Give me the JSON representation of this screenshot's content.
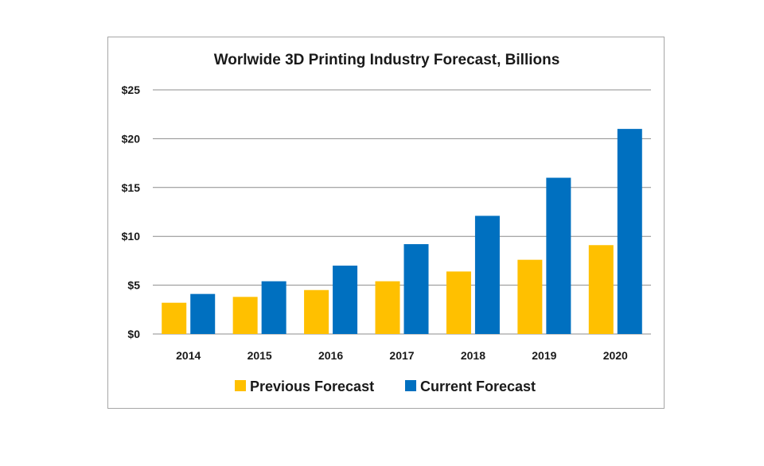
{
  "chart_data": {
    "type": "bar",
    "title": "Worlwide 3D Printing Industry Forecast, Billions",
    "categories": [
      "2014",
      "2015",
      "2016",
      "2017",
      "2018",
      "2019",
      "2020"
    ],
    "series": [
      {
        "name": "Previous Forecast",
        "color": "#FFC000",
        "values": [
          3.2,
          3.8,
          4.5,
          5.4,
          6.4,
          7.6,
          9.1
        ]
      },
      {
        "name": "Current Forecast",
        "color": "#0070C0",
        "values": [
          4.1,
          5.4,
          7.0,
          9.2,
          12.1,
          16.0,
          21.0
        ]
      }
    ],
    "ylim": [
      0,
      25
    ],
    "yticks": [
      0,
      5,
      10,
      15,
      20,
      25
    ],
    "ytick_labels": [
      "$0",
      "$5",
      "$10",
      "$15",
      "$20",
      "$25"
    ],
    "xlabel": "",
    "ylabel": "",
    "grid": true,
    "legend_position": "bottom"
  }
}
